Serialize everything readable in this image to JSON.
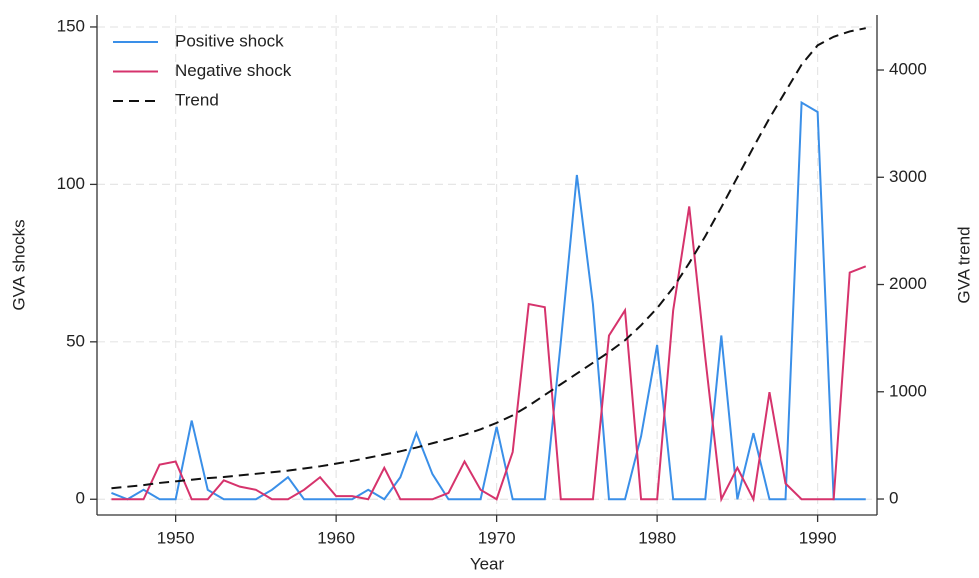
{
  "chart_data": {
    "type": "line",
    "x": [
      1946,
      1947,
      1948,
      1949,
      1950,
      1951,
      1952,
      1953,
      1954,
      1955,
      1956,
      1957,
      1958,
      1959,
      1960,
      1961,
      1962,
      1963,
      1964,
      1965,
      1966,
      1967,
      1968,
      1969,
      1970,
      1971,
      1972,
      1973,
      1974,
      1975,
      1976,
      1977,
      1978,
      1979,
      1980,
      1981,
      1982,
      1983,
      1984,
      1985,
      1986,
      1987,
      1988,
      1989,
      1990,
      1991,
      1992,
      1993
    ],
    "series": [
      {
        "name": "Positive shock",
        "color": "#3a8fe8",
        "values": [
          2,
          0,
          3,
          0,
          0,
          25,
          3,
          0,
          0,
          0,
          3,
          7,
          0,
          0,
          0,
          0,
          3,
          0,
          7,
          21,
          8,
          0,
          0,
          0,
          23,
          0,
          0,
          0,
          50,
          103,
          62,
          0,
          0,
          20,
          49,
          0,
          0,
          0,
          52,
          0,
          21,
          0,
          0,
          126,
          123,
          0,
          0,
          0
        ]
      },
      {
        "name": "Negative shock",
        "color": "#d6336c",
        "values": [
          0,
          0,
          0,
          11,
          12,
          0,
          0,
          6,
          4,
          3,
          0,
          0,
          3,
          7,
          1,
          1,
          0,
          10,
          0,
          0,
          0,
          2,
          12,
          3,
          0,
          15,
          62,
          61,
          0,
          0,
          0,
          52,
          60,
          0,
          0,
          60,
          93,
          45,
          0,
          10,
          0,
          34,
          5,
          0,
          0,
          0,
          72,
          74
        ]
      },
      {
        "name": "Trend",
        "color": "#111111",
        "dashed": true,
        "axis": "y2",
        "values": [
          100,
          115,
          130,
          150,
          165,
          180,
          195,
          205,
          220,
          235,
          250,
          265,
          285,
          305,
          330,
          355,
          385,
          415,
          445,
          480,
          520,
          560,
          600,
          650,
          710,
          780,
          870,
          970,
          1070,
          1170,
          1270,
          1370,
          1480,
          1620,
          1780,
          1970,
          2200,
          2450,
          2720,
          3000,
          3280,
          3550,
          3800,
          4050,
          4230,
          4310,
          4360,
          4390
        ]
      }
    ],
    "xlabel": "Year",
    "ylabel": "GVA shocks",
    "y2label": "GVA trend",
    "xlim": [
      1945.1,
      1993.7
    ],
    "xticks": [
      1950,
      1960,
      1970,
      1980,
      1990
    ],
    "ylim": [
      -5,
      153.8
    ],
    "yticks": [
      0,
      50,
      100,
      150
    ],
    "y2lim": [
      -149,
      4513
    ],
    "y2ticks": [
      0,
      1000,
      2000,
      3000,
      4000
    ],
    "grid": true,
    "legend": "upper left"
  }
}
